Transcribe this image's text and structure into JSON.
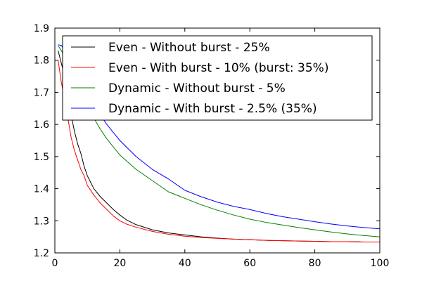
{
  "chart_data": {
    "type": "line",
    "title": "",
    "xlabel": "",
    "ylabel": "",
    "xlim": [
      0,
      100
    ],
    "ylim": [
      1.2,
      1.9
    ],
    "grid": false,
    "legend_position": "top-right",
    "x_ticks": [
      "0",
      "20",
      "40",
      "60",
      "80",
      "100"
    ],
    "y_ticks": [
      "1.2",
      "1.3",
      "1.4",
      "1.5",
      "1.6",
      "1.7",
      "1.8",
      "1.9"
    ],
    "series": [
      {
        "name": "Even - Without burst - 25%",
        "color": "#000000",
        "x": [
          1,
          2,
          3,
          4,
          5,
          6,
          7,
          8,
          9,
          10,
          12,
          14,
          16,
          18,
          20,
          22,
          25,
          30,
          35,
          40,
          45,
          50,
          55,
          60,
          65,
          70,
          75,
          80,
          85,
          90,
          95,
          100
        ],
        "y": [
          1.83,
          1.79,
          1.75,
          1.69,
          1.63,
          1.58,
          1.54,
          1.51,
          1.47,
          1.44,
          1.4,
          1.375,
          1.355,
          1.335,
          1.318,
          1.303,
          1.288,
          1.272,
          1.262,
          1.256,
          1.25,
          1.246,
          1.243,
          1.241,
          1.239,
          1.238,
          1.237,
          1.236,
          1.235,
          1.235,
          1.234,
          1.234
        ]
      },
      {
        "name": "Even - With burst - 10% (burst: 35%)",
        "color": "#ff0000",
        "x": [
          1,
          2,
          3,
          4,
          5,
          6,
          7,
          8,
          9,
          10,
          12,
          14,
          16,
          18,
          20,
          22,
          25,
          30,
          35,
          40,
          45,
          50,
          55,
          60,
          65,
          70,
          75,
          80,
          85,
          90,
          95,
          100
        ],
        "y": [
          1.8,
          1.73,
          1.68,
          1.62,
          1.56,
          1.52,
          1.49,
          1.46,
          1.44,
          1.41,
          1.38,
          1.355,
          1.335,
          1.315,
          1.3,
          1.29,
          1.28,
          1.267,
          1.258,
          1.252,
          1.248,
          1.245,
          1.243,
          1.241,
          1.239,
          1.238,
          1.237,
          1.236,
          1.235,
          1.235,
          1.234,
          1.234
        ]
      },
      {
        "name": "Dynamic - Without burst - 5%",
        "color": "#008000",
        "x": [
          1,
          2,
          3,
          5,
          8,
          10,
          12,
          14,
          16,
          18,
          20,
          25,
          30,
          35,
          40,
          45,
          50,
          55,
          60,
          65,
          70,
          75,
          80,
          85,
          90,
          95,
          100
        ],
        "y": [
          1.845,
          1.83,
          1.81,
          1.78,
          1.72,
          1.67,
          1.62,
          1.585,
          1.555,
          1.53,
          1.505,
          1.46,
          1.425,
          1.39,
          1.37,
          1.35,
          1.333,
          1.318,
          1.305,
          1.295,
          1.287,
          1.279,
          1.272,
          1.265,
          1.259,
          1.254,
          1.25
        ]
      },
      {
        "name": "Dynamic - With burst - 2.5% (35%)",
        "color": "#0000ff",
        "x": [
          1,
          2,
          3,
          5,
          8,
          10,
          12,
          14,
          16,
          18,
          20,
          25,
          30,
          35,
          40,
          45,
          50,
          55,
          60,
          65,
          70,
          75,
          80,
          85,
          90,
          95,
          100
        ],
        "y": [
          1.848,
          1.846,
          1.83,
          1.8,
          1.74,
          1.7,
          1.665,
          1.63,
          1.6,
          1.575,
          1.55,
          1.5,
          1.46,
          1.43,
          1.395,
          1.375,
          1.358,
          1.345,
          1.335,
          1.323,
          1.313,
          1.305,
          1.297,
          1.29,
          1.284,
          1.279,
          1.275
        ]
      }
    ]
  }
}
